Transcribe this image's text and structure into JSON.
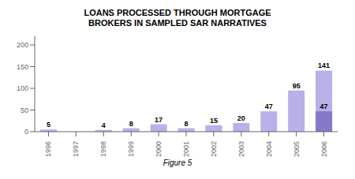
{
  "chart_data": {
    "type": "bar",
    "title": "LOANS PROCESSED THROUGH MORTGAGE\nBROKERS IN SAMPLED SAR NARRATIVES",
    "caption": "Figure 5",
    "categories": [
      "1996",
      "1997",
      "1998",
      "1999",
      "2000",
      "2001",
      "2002",
      "2003",
      "2004",
      "2005",
      "2006"
    ],
    "series": [
      {
        "color": "#b8b0e8",
        "values": [
          5,
          0,
          4,
          8,
          17,
          8,
          15,
          20,
          47,
          95,
          141
        ]
      },
      {
        "color": "#8878c8",
        "values": [
          0,
          0,
          0,
          0,
          0,
          0,
          0,
          0,
          0,
          0,
          47
        ],
        "value_labels": [
          null,
          null,
          null,
          null,
          null,
          null,
          null,
          null,
          null,
          null,
          "47"
        ]
      }
    ],
    "ylim": [
      0,
      220
    ],
    "yticks": [
      0,
      50,
      100,
      150,
      200
    ],
    "stacked": false,
    "grid": false,
    "data_labels": true
  }
}
